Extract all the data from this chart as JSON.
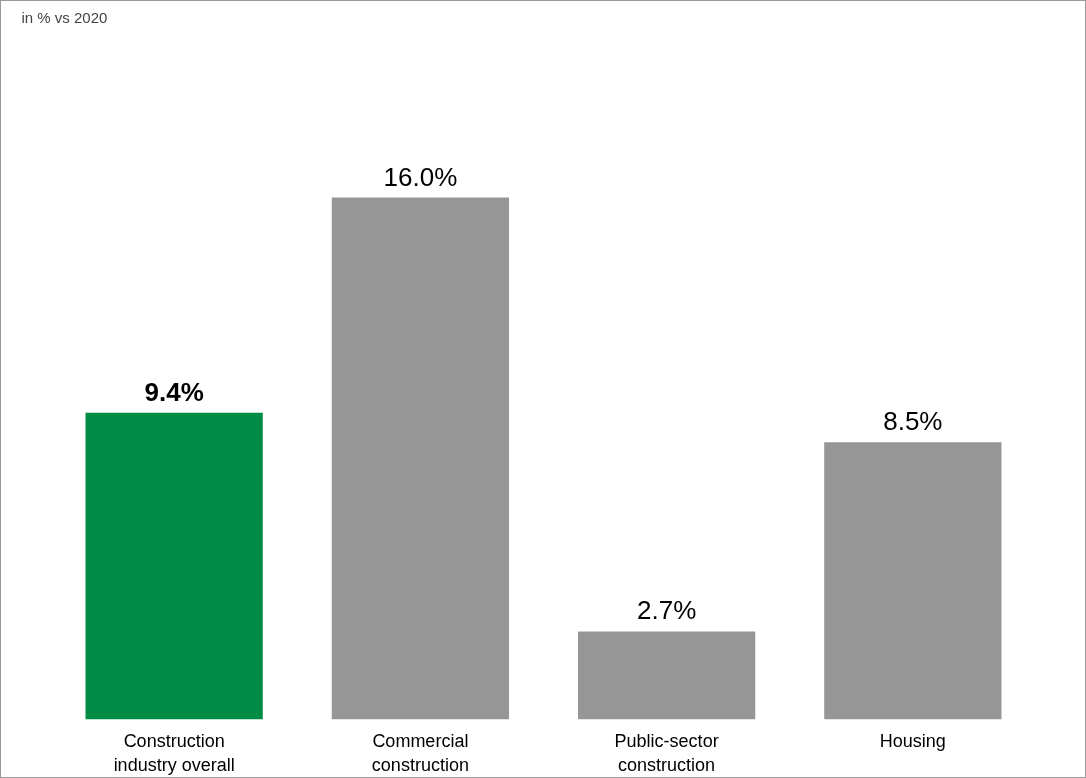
{
  "chart_data": {
    "type": "bar",
    "title": "in % vs 2020",
    "categories": [
      "Construction industry overall",
      "Commercial construction",
      "Public-sector construction",
      "Housing"
    ],
    "values": [
      9.4,
      16.0,
      2.7,
      8.5
    ],
    "colors": [
      "#008c45",
      "#969696",
      "#969696",
      "#969696"
    ],
    "value_labels": [
      "9.4%",
      "16.0%",
      "2.7%",
      "8.5%"
    ],
    "grid": false
  }
}
